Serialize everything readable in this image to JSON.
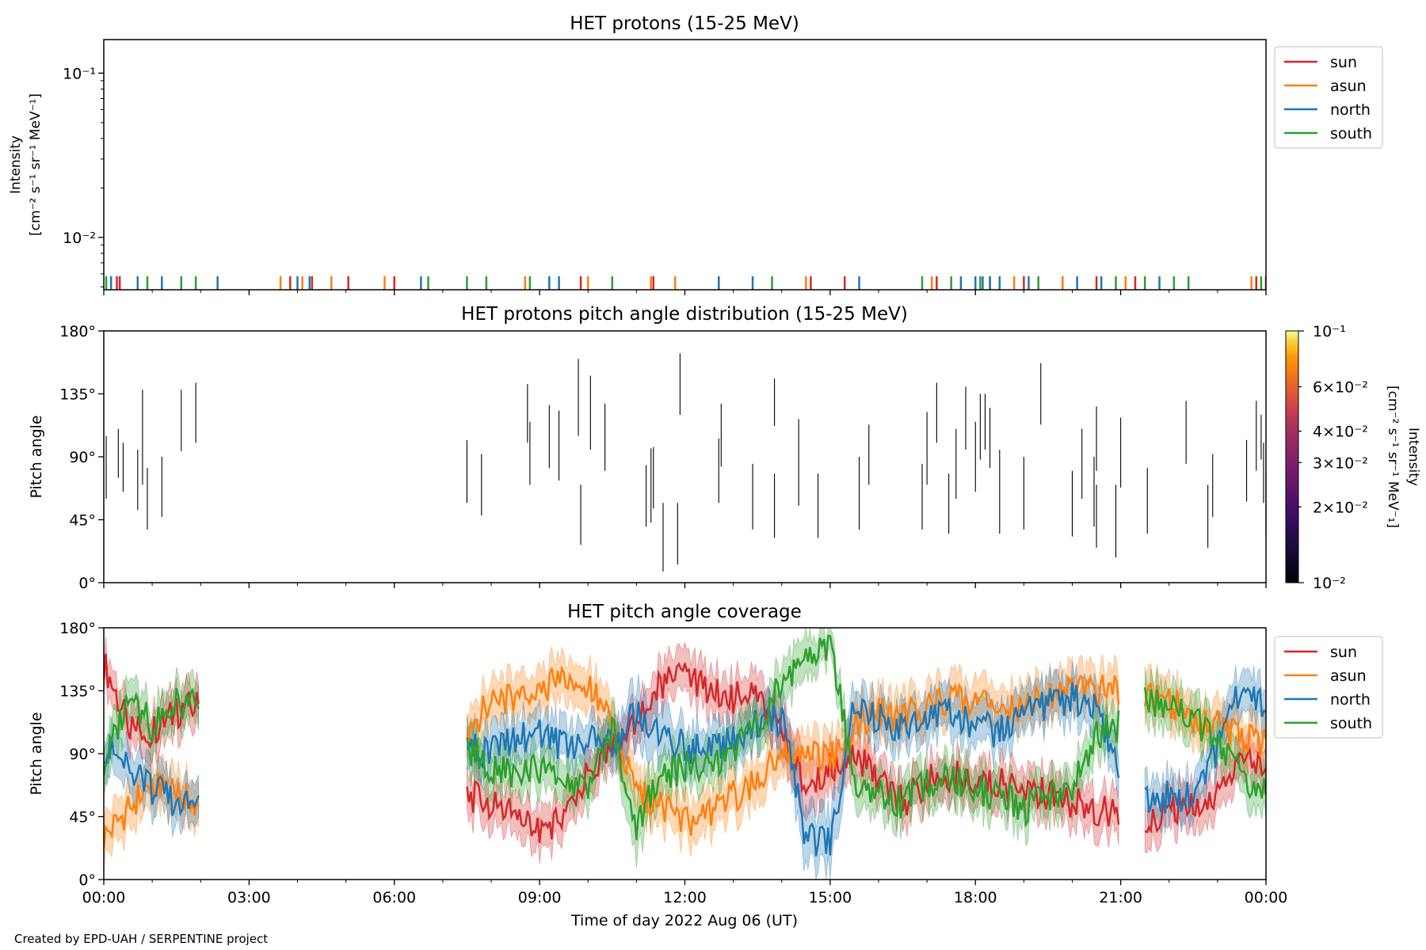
{
  "figure": {
    "footer": "Created by EPD-UAH / SERPENTINE project",
    "xlabel": "Time of day 2022 Aug 06 (UT)",
    "xticks": [
      "00:00",
      "03:00",
      "06:00",
      "09:00",
      "12:00",
      "15:00",
      "18:00",
      "21:00",
      "00:00"
    ],
    "colors": {
      "sun": "#d62728",
      "asun": "#ff7f0e",
      "north": "#1f77b4",
      "south": "#2ca02c"
    }
  },
  "chart_data": [
    {
      "type": "line",
      "title": "HET protons (15-25 MeV)",
      "ylabel_line1": "Intensity",
      "ylabel_line2": "[cm⁻² s⁻¹ sr⁻¹ MeV⁻¹]",
      "yscale": "log",
      "ylim": [
        0.0048,
        0.16
      ],
      "yticks": [
        {
          "value": 0.1,
          "label": "10⁻¹"
        },
        {
          "value": 0.01,
          "label": "10⁻²"
        }
      ],
      "xlim_hours": [
        0,
        24
      ],
      "legend": {
        "position": "right-top",
        "entries": [
          "sun",
          "asun",
          "north",
          "south"
        ]
      },
      "series": [
        {
          "name": "sun",
          "spikes_hours": [
            0.27,
            0.33,
            3.85,
            4.3,
            5.05,
            6.0,
            9.85,
            11.3,
            11.35,
            12.7,
            14.6,
            15.3,
            17.2,
            18.3,
            19.0,
            19.8,
            20.5,
            21.3,
            23.8,
            24.0
          ]
        },
        {
          "name": "asun",
          "spikes_hours": [
            3.65,
            4.1,
            4.7,
            5.8,
            8.7,
            10.0,
            11.3,
            11.8,
            14.5,
            17.1,
            18.8,
            19.8,
            21.1,
            23.7
          ]
        },
        {
          "name": "north",
          "spikes_hours": [
            0.15,
            0.7,
            1.2,
            2.35,
            4.0,
            4.25,
            6.55,
            9.2,
            9.4,
            12.7,
            13.4,
            15.6,
            17.7,
            18.0,
            18.15,
            18.3,
            18.5,
            19.1,
            20.1,
            20.6,
            21.8
          ]
        },
        {
          "name": "south",
          "spikes_hours": [
            0.05,
            0.9,
            1.6,
            1.9,
            6.7,
            7.5,
            7.9,
            8.8,
            10.5,
            13.8,
            16.9,
            17.5,
            18.1,
            19.3,
            20.9,
            21.5,
            22.1,
            22.4,
            23.9
          ]
        }
      ]
    },
    {
      "type": "heatmap",
      "title": "HET protons pitch angle distribution (15-25 MeV)",
      "ylabel": "Pitch angle",
      "ylim": [
        0,
        180
      ],
      "yticks": [
        "0°",
        "45°",
        "90°",
        "135°",
        "180°"
      ],
      "xlim_hours": [
        0,
        24
      ],
      "colorbar": {
        "label": "Intensity [cm⁻² s⁻¹ sr⁻¹ MeV⁻¹]",
        "label_line1": "Intensity",
        "label_line2": "[cm⁻² s⁻¹ sr⁻¹ MeV⁻₁]",
        "scale": "log",
        "range": [
          0.01,
          0.1
        ],
        "colormap": "inferno",
        "ticks": [
          {
            "value": 0.1,
            "label": "10⁻¹"
          },
          {
            "value": 0.06,
            "label": "6×10⁻²"
          },
          {
            "value": 0.04,
            "label": "4×10⁻²"
          },
          {
            "value": 0.03,
            "label": "3×10⁻²"
          },
          {
            "value": 0.02,
            "label": "2×10⁻²"
          },
          {
            "value": 0.01,
            "label": "10⁻²"
          }
        ]
      },
      "segments": [
        {
          "t": 0.05,
          "p0": 60,
          "p1": 105
        },
        {
          "t": 0.3,
          "p0": 75,
          "p1": 110
        },
        {
          "t": 0.4,
          "p0": 65,
          "p1": 100
        },
        {
          "t": 0.7,
          "p0": 52,
          "p1": 95
        },
        {
          "t": 0.8,
          "p0": 70,
          "p1": 138
        },
        {
          "t": 0.9,
          "p0": 38,
          "p1": 82
        },
        {
          "t": 1.2,
          "p0": 47,
          "p1": 90
        },
        {
          "t": 1.6,
          "p0": 94,
          "p1": 138
        },
        {
          "t": 1.9,
          "p0": 100,
          "p1": 143
        },
        {
          "t": 7.5,
          "p0": 57,
          "p1": 102
        },
        {
          "t": 7.8,
          "p0": 48,
          "p1": 92
        },
        {
          "t": 8.75,
          "p0": 100,
          "p1": 142
        },
        {
          "t": 8.8,
          "p0": 70,
          "p1": 115
        },
        {
          "t": 9.2,
          "p0": 82,
          "p1": 127
        },
        {
          "t": 9.4,
          "p0": 73,
          "p1": 123
        },
        {
          "t": 9.8,
          "p0": 105,
          "p1": 160
        },
        {
          "t": 9.85,
          "p0": 27,
          "p1": 70
        },
        {
          "t": 10.05,
          "p0": 95,
          "p1": 148
        },
        {
          "t": 10.35,
          "p0": 80,
          "p1": 128
        },
        {
          "t": 11.2,
          "p0": 40,
          "p1": 84
        },
        {
          "t": 11.3,
          "p0": 43,
          "p1": 96
        },
        {
          "t": 11.35,
          "p0": 53,
          "p1": 97
        },
        {
          "t": 11.55,
          "p0": 8,
          "p1": 57
        },
        {
          "t": 11.85,
          "p0": 13,
          "p1": 57
        },
        {
          "t": 11.9,
          "p0": 120,
          "p1": 164
        },
        {
          "t": 12.7,
          "p0": 57,
          "p1": 103
        },
        {
          "t": 12.75,
          "p0": 83,
          "p1": 128
        },
        {
          "t": 13.4,
          "p0": 38,
          "p1": 85
        },
        {
          "t": 13.85,
          "p0": 32,
          "p1": 78
        },
        {
          "t": 13.85,
          "p0": 112,
          "p1": 146
        },
        {
          "t": 14.35,
          "p0": 55,
          "p1": 117
        },
        {
          "t": 14.75,
          "p0": 32,
          "p1": 78
        },
        {
          "t": 15.6,
          "p0": 38,
          "p1": 90
        },
        {
          "t": 15.8,
          "p0": 70,
          "p1": 113
        },
        {
          "t": 16.9,
          "p0": 38,
          "p1": 85
        },
        {
          "t": 17.0,
          "p0": 70,
          "p1": 122
        },
        {
          "t": 17.2,
          "p0": 100,
          "p1": 143
        },
        {
          "t": 17.45,
          "p0": 35,
          "p1": 78
        },
        {
          "t": 17.6,
          "p0": 60,
          "p1": 110
        },
        {
          "t": 17.8,
          "p0": 95,
          "p1": 140
        },
        {
          "t": 18.0,
          "p0": 65,
          "p1": 115
        },
        {
          "t": 18.1,
          "p0": 88,
          "p1": 135
        },
        {
          "t": 18.2,
          "p0": 95,
          "p1": 135
        },
        {
          "t": 18.3,
          "p0": 82,
          "p1": 125
        },
        {
          "t": 18.5,
          "p0": 35,
          "p1": 95
        },
        {
          "t": 19.0,
          "p0": 38,
          "p1": 90
        },
        {
          "t": 19.35,
          "p0": 113,
          "p1": 157
        },
        {
          "t": 20.0,
          "p0": 33,
          "p1": 80
        },
        {
          "t": 20.2,
          "p0": 60,
          "p1": 110
        },
        {
          "t": 20.5,
          "p0": 25,
          "p1": 70
        },
        {
          "t": 20.45,
          "p0": 40,
          "p1": 90
        },
        {
          "t": 20.5,
          "p0": 80,
          "p1": 126
        },
        {
          "t": 20.9,
          "p0": 18,
          "p1": 70
        },
        {
          "t": 21.0,
          "p0": 68,
          "p1": 118
        },
        {
          "t": 21.55,
          "p0": 35,
          "p1": 82
        },
        {
          "t": 22.35,
          "p0": 85,
          "p1": 130
        },
        {
          "t": 22.8,
          "p0": 25,
          "p1": 70
        },
        {
          "t": 22.9,
          "p0": 47,
          "p1": 92
        },
        {
          "t": 23.6,
          "p0": 58,
          "p1": 102
        },
        {
          "t": 23.8,
          "p0": 80,
          "p1": 130
        },
        {
          "t": 23.9,
          "p0": 88,
          "p1": 120
        },
        {
          "t": 23.95,
          "p0": 57,
          "p1": 100
        },
        {
          "t": 24.0,
          "p0": 35,
          "p1": 80
        }
      ]
    },
    {
      "type": "area",
      "title": "HET pitch angle coverage",
      "ylabel": "Pitch angle",
      "ylim": [
        0,
        180
      ],
      "yticks": [
        "0°",
        "45°",
        "90°",
        "135°",
        "180°"
      ],
      "xlim_hours": [
        0,
        24
      ],
      "data_gaps_hours": [
        [
          2.0,
          7.5
        ],
        [
          20.95,
          21.5
        ]
      ],
      "legend": {
        "position": "right-top",
        "entries": [
          "sun",
          "asun",
          "north",
          "south"
        ]
      },
      "series": [
        {
          "name": "sun",
          "x": [
            0,
            0.5,
            1,
            1.5,
            2,
            7.5,
            8,
            8.5,
            9,
            9.5,
            10,
            10.5,
            11,
            11.5,
            12,
            12.5,
            13,
            13.5,
            14,
            14.5,
            15,
            15.5,
            16,
            16.5,
            17,
            17.5,
            18,
            18.5,
            19,
            19.5,
            20,
            20.5,
            21,
            21.5,
            22,
            22.5,
            23,
            23.5,
            24
          ],
          "y": [
            155,
            110,
            105,
            120,
            125,
            60,
            55,
            45,
            35,
            45,
            75,
            90,
            110,
            140,
            145,
            135,
            130,
            130,
            110,
            60,
            80,
            90,
            70,
            55,
            70,
            75,
            70,
            68,
            65,
            60,
            55,
            50,
            45,
            45,
            48,
            50,
            60,
            95,
            80
          ],
          "band": [
            25,
            30,
            30,
            30,
            30,
            30,
            30,
            30,
            30,
            30,
            30,
            30,
            30,
            30,
            30,
            30,
            30,
            30,
            40,
            40,
            30,
            30,
            30,
            30,
            30,
            30,
            30,
            30,
            30,
            30,
            30,
            30,
            30,
            30,
            30,
            30,
            30,
            30,
            30
          ]
        },
        {
          "name": "asun",
          "x": [
            0,
            0.5,
            1,
            1.5,
            2,
            7.5,
            8,
            8.5,
            9,
            9.5,
            10,
            10.5,
            11,
            11.5,
            12,
            12.5,
            13,
            13.5,
            14,
            14.5,
            15,
            15.5,
            16,
            16.5,
            17,
            17.5,
            18,
            18.5,
            19,
            19.5,
            20,
            20.5,
            21,
            21.5,
            22,
            22.5,
            23,
            23.5,
            24
          ],
          "y": [
            30,
            50,
            70,
            60,
            55,
            110,
            125,
            130,
            135,
            145,
            140,
            110,
            60,
            55,
            40,
            45,
            60,
            70,
            90,
            95,
            85,
            110,
            120,
            115,
            125,
            130,
            130,
            120,
            125,
            130,
            135,
            135,
            135,
            135,
            128,
            115,
            110,
            100,
            100
          ],
          "band": [
            30,
            30,
            30,
            30,
            30,
            30,
            30,
            30,
            30,
            30,
            30,
            30,
            30,
            30,
            30,
            30,
            30,
            30,
            30,
            30,
            30,
            30,
            30,
            30,
            30,
            30,
            30,
            30,
            30,
            30,
            30,
            30,
            30,
            30,
            30,
            30,
            30,
            30,
            30
          ]
        },
        {
          "name": "north",
          "x": [
            0,
            0.5,
            1,
            1.5,
            2,
            7.5,
            8,
            8.5,
            9,
            9.5,
            10,
            10.5,
            11,
            11.5,
            12,
            12.5,
            13,
            13.5,
            14,
            14.5,
            15,
            15.5,
            16,
            16.5,
            17,
            17.5,
            18,
            18.5,
            19,
            19.5,
            20,
            20.5,
            21,
            21.5,
            22,
            22.5,
            23,
            23.5,
            24
          ],
          "y": [
            95,
            80,
            65,
            55,
            50,
            95,
            90,
            100,
            105,
            95,
            100,
            95,
            120,
            100,
            95,
            90,
            100,
            110,
            115,
            30,
            25,
            125,
            115,
            110,
            115,
            120,
            110,
            105,
            120,
            125,
            130,
            120,
            70,
            55,
            60,
            60,
            90,
            140,
            120
          ],
          "band": [
            30,
            30,
            30,
            30,
            30,
            30,
            30,
            30,
            30,
            30,
            30,
            30,
            40,
            40,
            30,
            30,
            30,
            30,
            30,
            40,
            40,
            30,
            30,
            30,
            30,
            30,
            30,
            30,
            30,
            30,
            30,
            30,
            30,
            30,
            30,
            30,
            30,
            30,
            30
          ]
        },
        {
          "name": "south",
          "x": [
            0,
            0.5,
            1,
            1.5,
            2,
            7.5,
            8,
            8.5,
            9,
            9.5,
            10,
            10.5,
            11,
            11.5,
            12,
            12.5,
            13,
            13.5,
            14,
            14.5,
            15,
            15.5,
            16,
            16.5,
            17,
            17.5,
            18,
            18.5,
            19,
            19.5,
            20,
            20.5,
            21,
            21.5,
            22,
            22.5,
            23,
            23.5,
            24
          ],
          "y": [
            80,
            130,
            110,
            125,
            130,
            95,
            80,
            75,
            80,
            70,
            65,
            110,
            40,
            75,
            80,
            85,
            90,
            110,
            140,
            160,
            170,
            70,
            60,
            55,
            70,
            75,
            65,
            60,
            50,
            60,
            65,
            105,
            110,
            130,
            125,
            115,
            100,
            75,
            60
          ],
          "band": [
            30,
            30,
            30,
            30,
            30,
            30,
            30,
            30,
            30,
            30,
            30,
            30,
            40,
            30,
            30,
            30,
            30,
            30,
            30,
            30,
            20,
            30,
            30,
            30,
            30,
            30,
            30,
            30,
            30,
            30,
            30,
            30,
            30,
            30,
            30,
            30,
            30,
            30,
            30
          ]
        }
      ]
    }
  ]
}
